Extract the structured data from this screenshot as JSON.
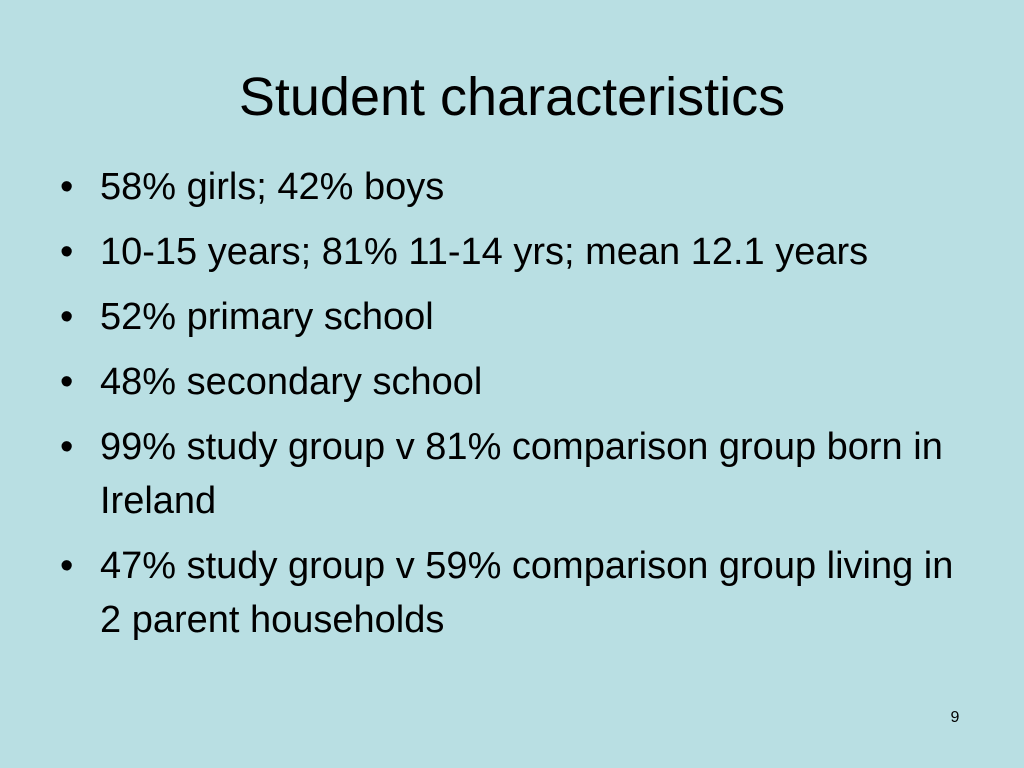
{
  "header": {
    "title": "Student characteristics"
  },
  "bullets": [
    "58% girls; 42% boys",
    "10-15 years; 81% 11-14 yrs; mean 12.1 years",
    "52% primary school",
    "48% secondary school",
    "99% study group v 81% comparison group born in Ireland",
    "47% study group v 59% comparison group living in 2 parent households"
  ],
  "footer": {
    "page_number": "9"
  }
}
